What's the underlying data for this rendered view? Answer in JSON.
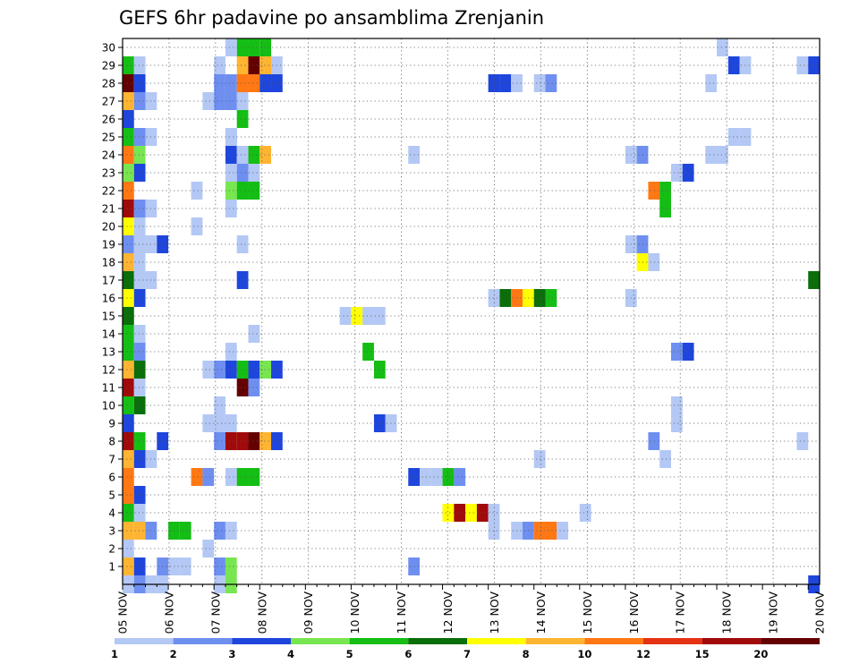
{
  "chart_data": {
    "type": "heatmap",
    "title": "GEFS 6hr padavine po ansamblima Zrenjanin",
    "xlabel": "",
    "ylabel": "",
    "x_ticks": [
      "05 NOV",
      "06 NOV",
      "07 NOV",
      "08 NOV",
      "09 NOV",
      "10 NOV",
      "11 NOV",
      "12 NOV",
      "13 NOV",
      "14 NOV",
      "15 NOV",
      "16 NOV",
      "17 NOV",
      "18 NOV",
      "19 NOV",
      "20 NOV"
    ],
    "y_ticks": [
      1,
      2,
      3,
      4,
      5,
      6,
      7,
      8,
      9,
      10,
      11,
      12,
      13,
      14,
      15,
      16,
      17,
      18,
      19,
      20,
      21,
      22,
      23,
      24,
      25,
      26,
      27,
      28,
      29,
      30
    ],
    "ylim": [
      0,
      30
    ],
    "time_steps_6h": 61,
    "grid": true,
    "legend_placement": "bottom",
    "legend": {
      "bounds": [
        1,
        2,
        3,
        4,
        5,
        6,
        7,
        8,
        10,
        12,
        15,
        20
      ],
      "colors": [
        "#b4c8f5",
        "#6e8ff0",
        "#1e46dc",
        "#78e650",
        "#14be14",
        "#0a6e0a",
        "#ffff00",
        "#ffb432",
        "#ff7814",
        "#e63214",
        "#a00a0a",
        "#640000"
      ]
    },
    "cells": [
      [
        0,
        0,
        1
      ],
      [
        1,
        0,
        2
      ],
      [
        0,
        1,
        8
      ],
      [
        1,
        1,
        3
      ],
      [
        3,
        1,
        2
      ],
      [
        5,
        1,
        1
      ],
      [
        0,
        2,
        1
      ],
      [
        0,
        3,
        8
      ],
      [
        1,
        3,
        8
      ],
      [
        2,
        3,
        2
      ],
      [
        4,
        3,
        5
      ],
      [
        0,
        4,
        5
      ],
      [
        1,
        4,
        1
      ],
      [
        0,
        5,
        10
      ],
      [
        1,
        5,
        3
      ],
      [
        0,
        6,
        10
      ],
      [
        0,
        7,
        8
      ],
      [
        1,
        7,
        3
      ],
      [
        2,
        7,
        1
      ],
      [
        0,
        8,
        15
      ],
      [
        1,
        8,
        5
      ],
      [
        0,
        9,
        3
      ],
      [
        0,
        10,
        5
      ],
      [
        1,
        10,
        6
      ],
      [
        0,
        11,
        15
      ],
      [
        1,
        11,
        1
      ],
      [
        0,
        12,
        8
      ],
      [
        1,
        12,
        6
      ],
      [
        0,
        13,
        5
      ],
      [
        1,
        13,
        2
      ],
      [
        0,
        14,
        5
      ],
      [
        1,
        14,
        1
      ],
      [
        0,
        15,
        6
      ],
      [
        0,
        16,
        7
      ],
      [
        1,
        16,
        3
      ],
      [
        0,
        17,
        6
      ],
      [
        1,
        17,
        1
      ],
      [
        2,
        17,
        1
      ],
      [
        0,
        18,
        8
      ],
      [
        1,
        18,
        1
      ],
      [
        0,
        19,
        2
      ],
      [
        1,
        19,
        1
      ],
      [
        2,
        19,
        1
      ],
      [
        0,
        20,
        7
      ],
      [
        1,
        20,
        1
      ],
      [
        0,
        21,
        15
      ],
      [
        1,
        21,
        2
      ],
      [
        2,
        21,
        1
      ],
      [
        0,
        22,
        10
      ],
      [
        0,
        23,
        4
      ],
      [
        1,
        23,
        3
      ],
      [
        0,
        24,
        10
      ],
      [
        1,
        24,
        4
      ],
      [
        0,
        25,
        5
      ],
      [
        1,
        25,
        2
      ],
      [
        2,
        25,
        1
      ],
      [
        0,
        26,
        3
      ],
      [
        0,
        27,
        8
      ],
      [
        1,
        27,
        2
      ],
      [
        2,
        27,
        1
      ],
      [
        0,
        28,
        20
      ],
      [
        1,
        28,
        3
      ],
      [
        0,
        29,
        5
      ],
      [
        1,
        29,
        1
      ],
      [
        2,
        0,
        1
      ],
      [
        3,
        0,
        1
      ],
      [
        4,
        1,
        1
      ],
      [
        5,
        3,
        5
      ],
      [
        3,
        8,
        3
      ],
      [
        6,
        6,
        10
      ],
      [
        7,
        6,
        2
      ],
      [
        7,
        9,
        1
      ],
      [
        8,
        9,
        1
      ],
      [
        7,
        12,
        1
      ],
      [
        8,
        12,
        2
      ],
      [
        9,
        12,
        3
      ],
      [
        3,
        19,
        3
      ],
      [
        7,
        27,
        1
      ],
      [
        8,
        27,
        2
      ],
      [
        8,
        28,
        2
      ],
      [
        9,
        25,
        2
      ],
      [
        6,
        20,
        1
      ],
      [
        6,
        22,
        1
      ],
      [
        7,
        2,
        1
      ],
      [
        8,
        0,
        1
      ],
      [
        9,
        0,
        4
      ],
      [
        8,
        1,
        2
      ],
      [
        9,
        1,
        4
      ],
      [
        8,
        3,
        2
      ],
      [
        9,
        3,
        1
      ],
      [
        8,
        8,
        2
      ],
      [
        9,
        8,
        15
      ],
      [
        10,
        8,
        15
      ],
      [
        11,
        8,
        20
      ],
      [
        12,
        8,
        8
      ],
      [
        13,
        8,
        3
      ],
      [
        9,
        6,
        1
      ],
      [
        10,
        6,
        5
      ],
      [
        11,
        6,
        5
      ],
      [
        9,
        9,
        1
      ],
      [
        8,
        10,
        1
      ],
      [
        10,
        11,
        20
      ],
      [
        11,
        11,
        2
      ],
      [
        10,
        12,
        5
      ],
      [
        11,
        12,
        3
      ],
      [
        12,
        12,
        4
      ],
      [
        13,
        12,
        3
      ],
      [
        9,
        13,
        1
      ],
      [
        11,
        14,
        1
      ],
      [
        10,
        17,
        3
      ],
      [
        10,
        19,
        1
      ],
      [
        9,
        22,
        4
      ],
      [
        10,
        22,
        5
      ],
      [
        11,
        22,
        5
      ],
      [
        9,
        21,
        1
      ],
      [
        9,
        23,
        1
      ],
      [
        10,
        23,
        2
      ],
      [
        11,
        23,
        1
      ],
      [
        9,
        24,
        3
      ],
      [
        11,
        24,
        5
      ],
      [
        12,
        24,
        8
      ],
      [
        9,
        25,
        1
      ],
      [
        10,
        26,
        5
      ],
      [
        10,
        27,
        1
      ],
      [
        9,
        28,
        2
      ],
      [
        11,
        28,
        10
      ],
      [
        12,
        28,
        3
      ],
      [
        13,
        28,
        3
      ],
      [
        9,
        27,
        2
      ],
      [
        10,
        28,
        10
      ],
      [
        10,
        29,
        8
      ],
      [
        11,
        29,
        20
      ],
      [
        12,
        29,
        8
      ],
      [
        8,
        29,
        1
      ],
      [
        13,
        29,
        1
      ],
      [
        10,
        30,
        5
      ],
      [
        11,
        30,
        5
      ],
      [
        12,
        30,
        5
      ],
      [
        9,
        30,
        1
      ],
      [
        10,
        24,
        1
      ],
      [
        19,
        15,
        1
      ],
      [
        20,
        15,
        7
      ],
      [
        21,
        15,
        1
      ],
      [
        22,
        15,
        1
      ],
      [
        21,
        13,
        5
      ],
      [
        22,
        9,
        3
      ],
      [
        23,
        9,
        1
      ],
      [
        22,
        12,
        5
      ],
      [
        25,
        6,
        3
      ],
      [
        26,
        6,
        1
      ],
      [
        27,
        6,
        1
      ],
      [
        28,
        6,
        5
      ],
      [
        29,
        6,
        2
      ],
      [
        25,
        1,
        2
      ],
      [
        25,
        24,
        1
      ],
      [
        28,
        4,
        7
      ],
      [
        29,
        4,
        15
      ],
      [
        30,
        4,
        7
      ],
      [
        31,
        4,
        15
      ],
      [
        32,
        4,
        1
      ],
      [
        32,
        3,
        1
      ],
      [
        32,
        16,
        1
      ],
      [
        32,
        28,
        3
      ],
      [
        33,
        28,
        3
      ],
      [
        34,
        28,
        1
      ],
      [
        36,
        28,
        1
      ],
      [
        37,
        28,
        2
      ],
      [
        33,
        16,
        6
      ],
      [
        34,
        16,
        10
      ],
      [
        35,
        16,
        7
      ],
      [
        36,
        16,
        6
      ],
      [
        37,
        16,
        5
      ],
      [
        34,
        3,
        1
      ],
      [
        35,
        3,
        2
      ],
      [
        36,
        3,
        10
      ],
      [
        37,
        3,
        10
      ],
      [
        38,
        3,
        1
      ],
      [
        36,
        7,
        1
      ],
      [
        40,
        4,
        1
      ],
      [
        44,
        16,
        1
      ],
      [
        44,
        19,
        1
      ],
      [
        45,
        19,
        2
      ],
      [
        45,
        18,
        7
      ],
      [
        46,
        18,
        1
      ],
      [
        44,
        24,
        1
      ],
      [
        45,
        24,
        2
      ],
      [
        46,
        22,
        10
      ],
      [
        47,
        22,
        5
      ],
      [
        47,
        21,
        5
      ],
      [
        48,
        23,
        1
      ],
      [
        49,
        23,
        3
      ],
      [
        46,
        8,
        2
      ],
      [
        47,
        7,
        1
      ],
      [
        48,
        9,
        1
      ],
      [
        48,
        10,
        1
      ],
      [
        48,
        13,
        2
      ],
      [
        49,
        13,
        3
      ],
      [
        51,
        28,
        1
      ],
      [
        51,
        24,
        1
      ],
      [
        52,
        24,
        1
      ],
      [
        53,
        29,
        3
      ],
      [
        52,
        30,
        1
      ],
      [
        53,
        25,
        1
      ],
      [
        54,
        25,
        1
      ],
      [
        54,
        29,
        1
      ],
      [
        59,
        29,
        1
      ],
      [
        59,
        8,
        1
      ],
      [
        60,
        0,
        3
      ],
      [
        60,
        17,
        6
      ],
      [
        60,
        29,
        3
      ]
    ]
  }
}
